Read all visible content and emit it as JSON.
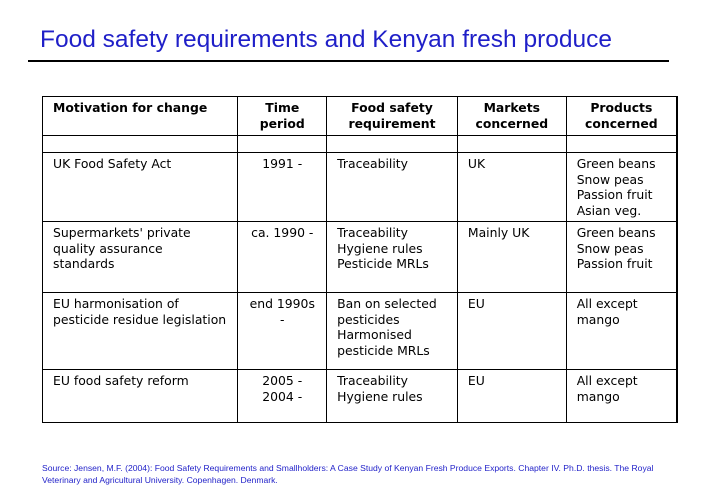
{
  "slide": {
    "title": "Food safety requirements and Kenyan fresh produce"
  },
  "table": {
    "headers": {
      "motivation": "Motivation for change",
      "time_line1": "Time",
      "time_line2": "period",
      "requirement_line1": "Food safety",
      "requirement_line2": "requirement",
      "markets_line1": "Markets",
      "markets_line2": "concerned",
      "products_line1": "Products",
      "products_line2": "concerned"
    },
    "rows": [
      {
        "motivation": "UK Food Safety Act",
        "time": [
          "1991 -"
        ],
        "requirement": [
          "Traceability"
        ],
        "markets": "UK",
        "products": [
          "Green beans",
          "Snow peas",
          "Passion fruit",
          "Asian veg."
        ]
      },
      {
        "motivation": "Supermarkets' private quality assurance standards",
        "time": [
          "ca. 1990 -"
        ],
        "requirement": [
          "Traceability",
          "Hygiene rules",
          "Pesticide MRLs"
        ],
        "markets": "Mainly UK",
        "products": [
          "Green beans",
          "Snow peas",
          "Passion fruit"
        ]
      },
      {
        "motivation": "EU harmonisation of pesticide residue legislation",
        "time": [
          "end 1990s",
          "-"
        ],
        "requirement": [
          "Ban on selected pesticides",
          "Harmonised pesticide MRLs"
        ],
        "markets": "EU",
        "products": [
          "All except mango"
        ]
      },
      {
        "motivation": "EU food safety reform",
        "time": [
          "2005 -",
          "2004 -"
        ],
        "requirement": [
          "Traceability",
          "Hygiene rules"
        ],
        "markets": "EU",
        "products": [
          "All except mango"
        ]
      }
    ]
  },
  "source": "Source: Jensen, M.F. (2004): Food Safety Requirements and Smallholders: A Case Study of Kenyan Fresh Produce Exports. Chapter IV. Ph.D. thesis. The Royal Veterinary and Agricultural University. Copenhagen. Denmark.",
  "colors": {
    "title": "#1f1fc8",
    "source": "#1f1fc8",
    "text": "#000000"
  }
}
